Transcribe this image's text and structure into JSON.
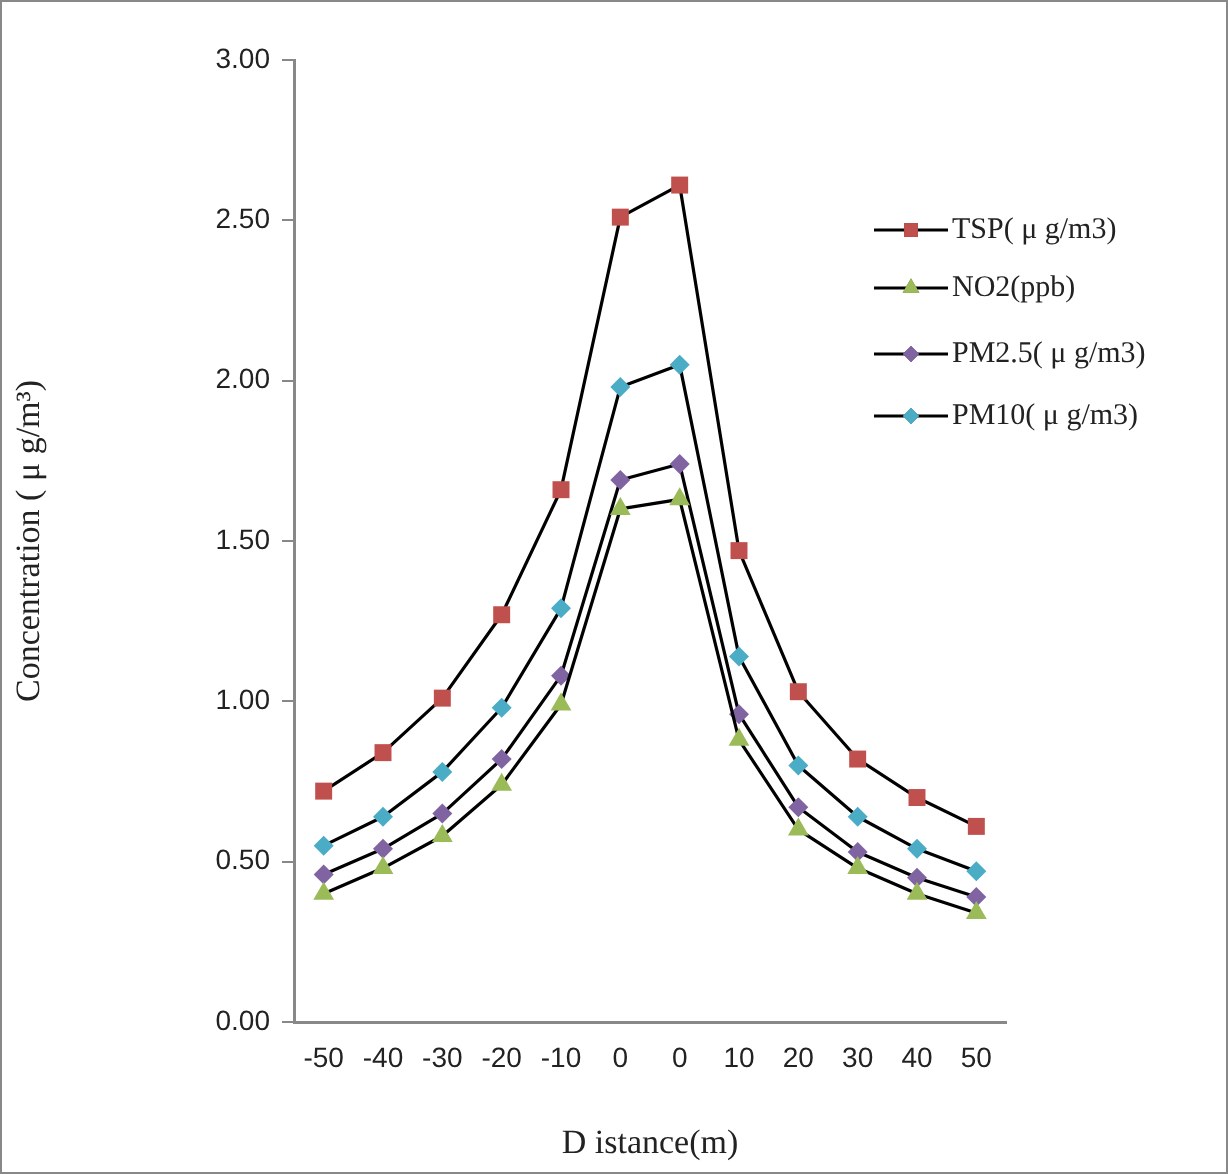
{
  "chart_data": {
    "type": "line",
    "xlabel": "D istance(m)",
    "ylabel": "Concentration ( μ g/m³)",
    "categories": [
      "-50",
      "-40",
      "-30",
      "-20",
      "-10",
      "0",
      "0",
      "10",
      "20",
      "30",
      "40",
      "50"
    ],
    "series": [
      {
        "name": "TSP( μ g/m3)",
        "color": "#c0504d",
        "marker": "square",
        "values": [
          0.72,
          0.84,
          1.01,
          1.27,
          1.66,
          2.51,
          2.61,
          1.47,
          1.03,
          0.82,
          0.7,
          0.61
        ]
      },
      {
        "name": "NO2(ppb)",
        "color": "#9bbb59",
        "marker": "triangle",
        "values": [
          0.4,
          0.48,
          0.58,
          0.74,
          0.99,
          1.6,
          1.63,
          0.88,
          0.6,
          0.48,
          0.4,
          0.34
        ]
      },
      {
        "name": "PM2.5( μ g/m3)",
        "color": "#8064a2",
        "marker": "diamond",
        "values": [
          0.46,
          0.54,
          0.65,
          0.82,
          1.08,
          1.69,
          1.74,
          0.96,
          0.67,
          0.53,
          0.45,
          0.39
        ]
      },
      {
        "name": "PM10( μ g/m3)",
        "color": "#4bacc6",
        "marker": "diamond",
        "values": [
          0.55,
          0.64,
          0.78,
          0.98,
          1.29,
          1.98,
          2.05,
          1.14,
          0.8,
          0.64,
          0.54,
          0.47
        ]
      }
    ],
    "ylim": [
      0,
      3
    ],
    "yticks": [
      {
        "value": 0,
        "label": "0.00"
      },
      {
        "value": 0.5,
        "label": "0.50"
      },
      {
        "value": 1,
        "label": "1.00"
      },
      {
        "value": 1.5,
        "label": "1.50"
      },
      {
        "value": 2,
        "label": "2.00"
      },
      {
        "value": 2.5,
        "label": "2.50"
      },
      {
        "value": 3,
        "label": "3.00"
      }
    ],
    "grid": false,
    "legend": "right",
    "line_style": "solid"
  }
}
